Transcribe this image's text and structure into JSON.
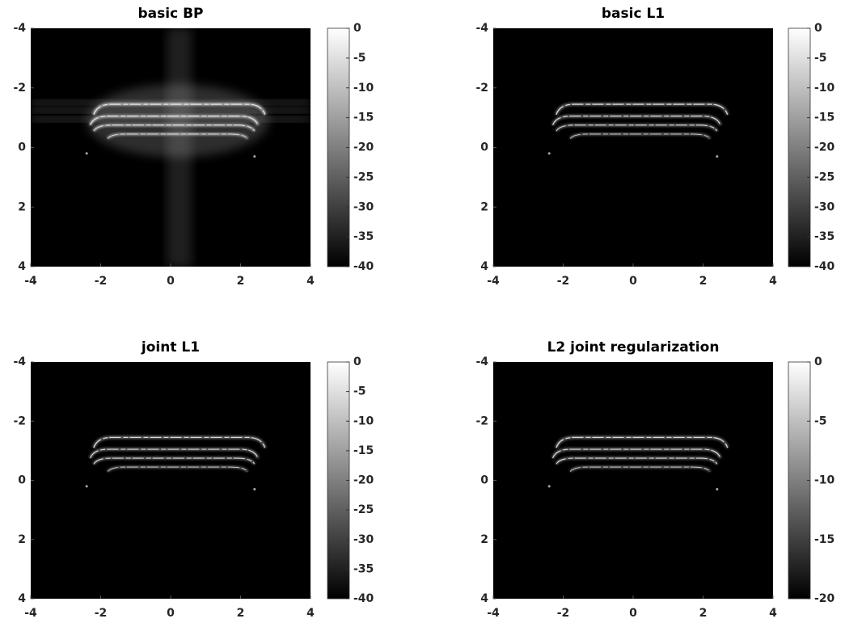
{
  "chart_data": [
    {
      "type": "heatmap",
      "title": "basic BP",
      "colormap": "gray",
      "xlim": [
        -4,
        4
      ],
      "ylim": [
        4,
        -4
      ],
      "xticks": [
        -4,
        -2,
        0,
        2,
        4
      ],
      "yticks": [
        -4,
        -2,
        0,
        2,
        4
      ],
      "colorbar": {
        "lim": [
          -40,
          0
        ],
        "ticks": [
          0,
          -5,
          -10,
          -15,
          -20,
          -25,
          -30,
          -35,
          -40
        ]
      }
    },
    {
      "type": "heatmap",
      "title": "basic L1",
      "colormap": "gray",
      "xlim": [
        -4,
        4
      ],
      "ylim": [
        4,
        -4
      ],
      "xticks": [
        -4,
        -2,
        0,
        2,
        4
      ],
      "yticks": [
        -4,
        -2,
        0,
        2,
        4
      ],
      "colorbar": {
        "lim": [
          -40,
          0
        ],
        "ticks": [
          0,
          -5,
          -10,
          -15,
          -20,
          -25,
          -30,
          -35,
          -40
        ]
      }
    },
    {
      "type": "heatmap",
      "title": "joint L1",
      "colormap": "gray",
      "xlim": [
        -4,
        4
      ],
      "ylim": [
        4,
        -4
      ],
      "xticks": [
        -4,
        -2,
        0,
        2,
        4
      ],
      "yticks": [
        -4,
        -2,
        0,
        2,
        4
      ],
      "colorbar": {
        "lim": [
          -40,
          0
        ],
        "ticks": [
          0,
          -5,
          -10,
          -15,
          -20,
          -25,
          -30,
          -35,
          -40
        ]
      }
    },
    {
      "type": "heatmap",
      "title": "L2 joint regularization",
      "colormap": "gray",
      "xlim": [
        -4,
        4
      ],
      "ylim": [
        4,
        -4
      ],
      "xticks": [
        -4,
        -2,
        0,
        2,
        4
      ],
      "yticks": [
        -4,
        -2,
        0,
        2,
        4
      ],
      "colorbar": {
        "lim": [
          -20,
          0
        ],
        "ticks": [
          0,
          -5,
          -10,
          -15,
          -20
        ]
      }
    }
  ]
}
